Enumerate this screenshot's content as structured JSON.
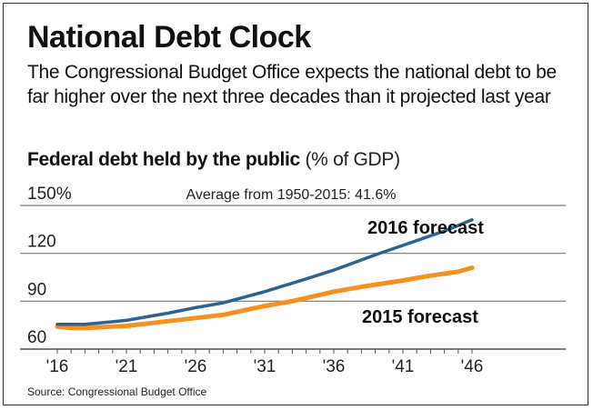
{
  "header": {
    "title": "National Debt Clock",
    "subtitle": "The Congressional Budget Office expects the national debt to be far higher over the next three decades than it projected last year"
  },
  "chart_data": {
    "type": "line",
    "title": "Federal debt held by the public",
    "title_unit": "(% of GDP)",
    "annotation": "Average from 1950-2015: 41.6%",
    "ylim": [
      60,
      150
    ],
    "yticks": [
      60,
      90,
      120,
      150
    ],
    "ytick_labels": [
      "60",
      "90",
      "120",
      "150%"
    ],
    "xlim": [
      2016,
      2046
    ],
    "xticks": [
      2016,
      2021,
      2026,
      2031,
      2036,
      2041,
      2046
    ],
    "xtick_labels": [
      "'16",
      "'21",
      "'26",
      "'31",
      "'36",
      "'41",
      "'46"
    ],
    "grid": true,
    "series": [
      {
        "name": "2016 forecast",
        "color": "#2b6391",
        "x": [
          2016,
          2018,
          2021,
          2024,
          2026,
          2028,
          2031,
          2034,
          2036,
          2039,
          2041,
          2044,
          2046
        ],
        "values": [
          75.5,
          75.5,
          78,
          82.5,
          86,
          89,
          96,
          104,
          109.5,
          119,
          125,
          134,
          141
        ]
      },
      {
        "name": "2015 forecast",
        "color": "#f7901e",
        "x": [
          2016,
          2017,
          2018,
          2021,
          2024,
          2026,
          2028,
          2031,
          2033,
          2036,
          2038,
          2041,
          2043,
          2045,
          2046
        ],
        "values": [
          74,
          73.2,
          73.2,
          74.5,
          77.5,
          79.5,
          81.5,
          87,
          90,
          96,
          99,
          103,
          106,
          108.5,
          111
        ]
      }
    ]
  },
  "footer": {
    "source": "Source: Congressional Budget Office"
  }
}
